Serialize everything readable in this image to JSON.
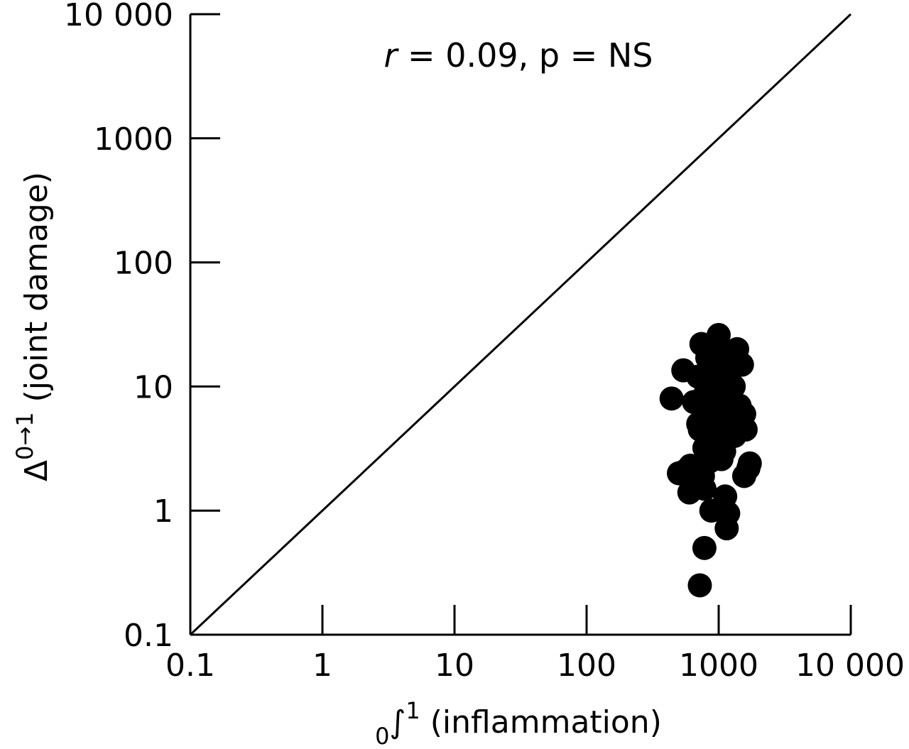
{
  "chart_data": {
    "type": "scatter",
    "scale": "log",
    "x_ticks": [
      "0.1",
      "1",
      "10",
      "100",
      "1000",
      "10 000"
    ],
    "y_ticks": [
      "0.1",
      "1",
      "10",
      "100",
      "1000",
      "10 000"
    ],
    "xlim": [
      0.1,
      10000
    ],
    "ylim": [
      0.1,
      10000
    ],
    "xlabel": {
      "prefix_subscript": "0",
      "symbol": "∫",
      "superscript": "1",
      "text": " (inflammation)"
    },
    "ylabel": {
      "symbol": "Δ",
      "superscript": "0→1",
      "text": " (joint damage)"
    },
    "annotation": {
      "r_symbol": "r",
      "text": " = 0.09, p = NS"
    },
    "reference_line": {
      "from": [
        0.1,
        0.1
      ],
      "to": [
        10000,
        10000
      ]
    },
    "grid": false,
    "marker_color": "#000000",
    "points": [
      [
        440,
        8
      ],
      [
        540,
        13.5
      ],
      [
        500,
        2.0
      ],
      [
        560,
        2.1
      ],
      [
        610,
        2.3
      ],
      [
        600,
        1.4
      ],
      [
        650,
        7.5
      ],
      [
        700,
        12
      ],
      [
        740,
        22
      ],
      [
        700,
        5
      ],
      [
        720,
        4.5
      ],
      [
        760,
        1.9
      ],
      [
        780,
        1.5
      ],
      [
        780,
        3.2
      ],
      [
        800,
        9
      ],
      [
        820,
        17
      ],
      [
        850,
        6.5
      ],
      [
        860,
        2.5
      ],
      [
        880,
        1.0
      ],
      [
        920,
        3.8
      ],
      [
        940,
        14
      ],
      [
        960,
        8
      ],
      [
        980,
        4.5
      ],
      [
        1000,
        26
      ],
      [
        1010,
        11
      ],
      [
        1020,
        6
      ],
      [
        1050,
        20
      ],
      [
        1050,
        2.6
      ],
      [
        1080,
        16
      ],
      [
        1100,
        3.0
      ],
      [
        1120,
        1.3
      ],
      [
        1150,
        9
      ],
      [
        1180,
        0.95
      ],
      [
        1200,
        12
      ],
      [
        1230,
        5.5
      ],
      [
        1250,
        18
      ],
      [
        1300,
        10
      ],
      [
        1320,
        4
      ],
      [
        1380,
        20
      ],
      [
        1440,
        7
      ],
      [
        1500,
        15
      ],
      [
        1560,
        6
      ],
      [
        1600,
        4.5
      ],
      [
        1560,
        1.9
      ],
      [
        1680,
        2.2
      ],
      [
        1720,
        2.4
      ],
      [
        1150,
        0.72
      ],
      [
        780,
        0.5
      ],
      [
        720,
        0.25
      ],
      [
        1150,
        8.5
      ],
      [
        900,
        12
      ],
      [
        1000,
        5.5
      ],
      [
        1050,
        7
      ],
      [
        950,
        10
      ]
    ]
  }
}
